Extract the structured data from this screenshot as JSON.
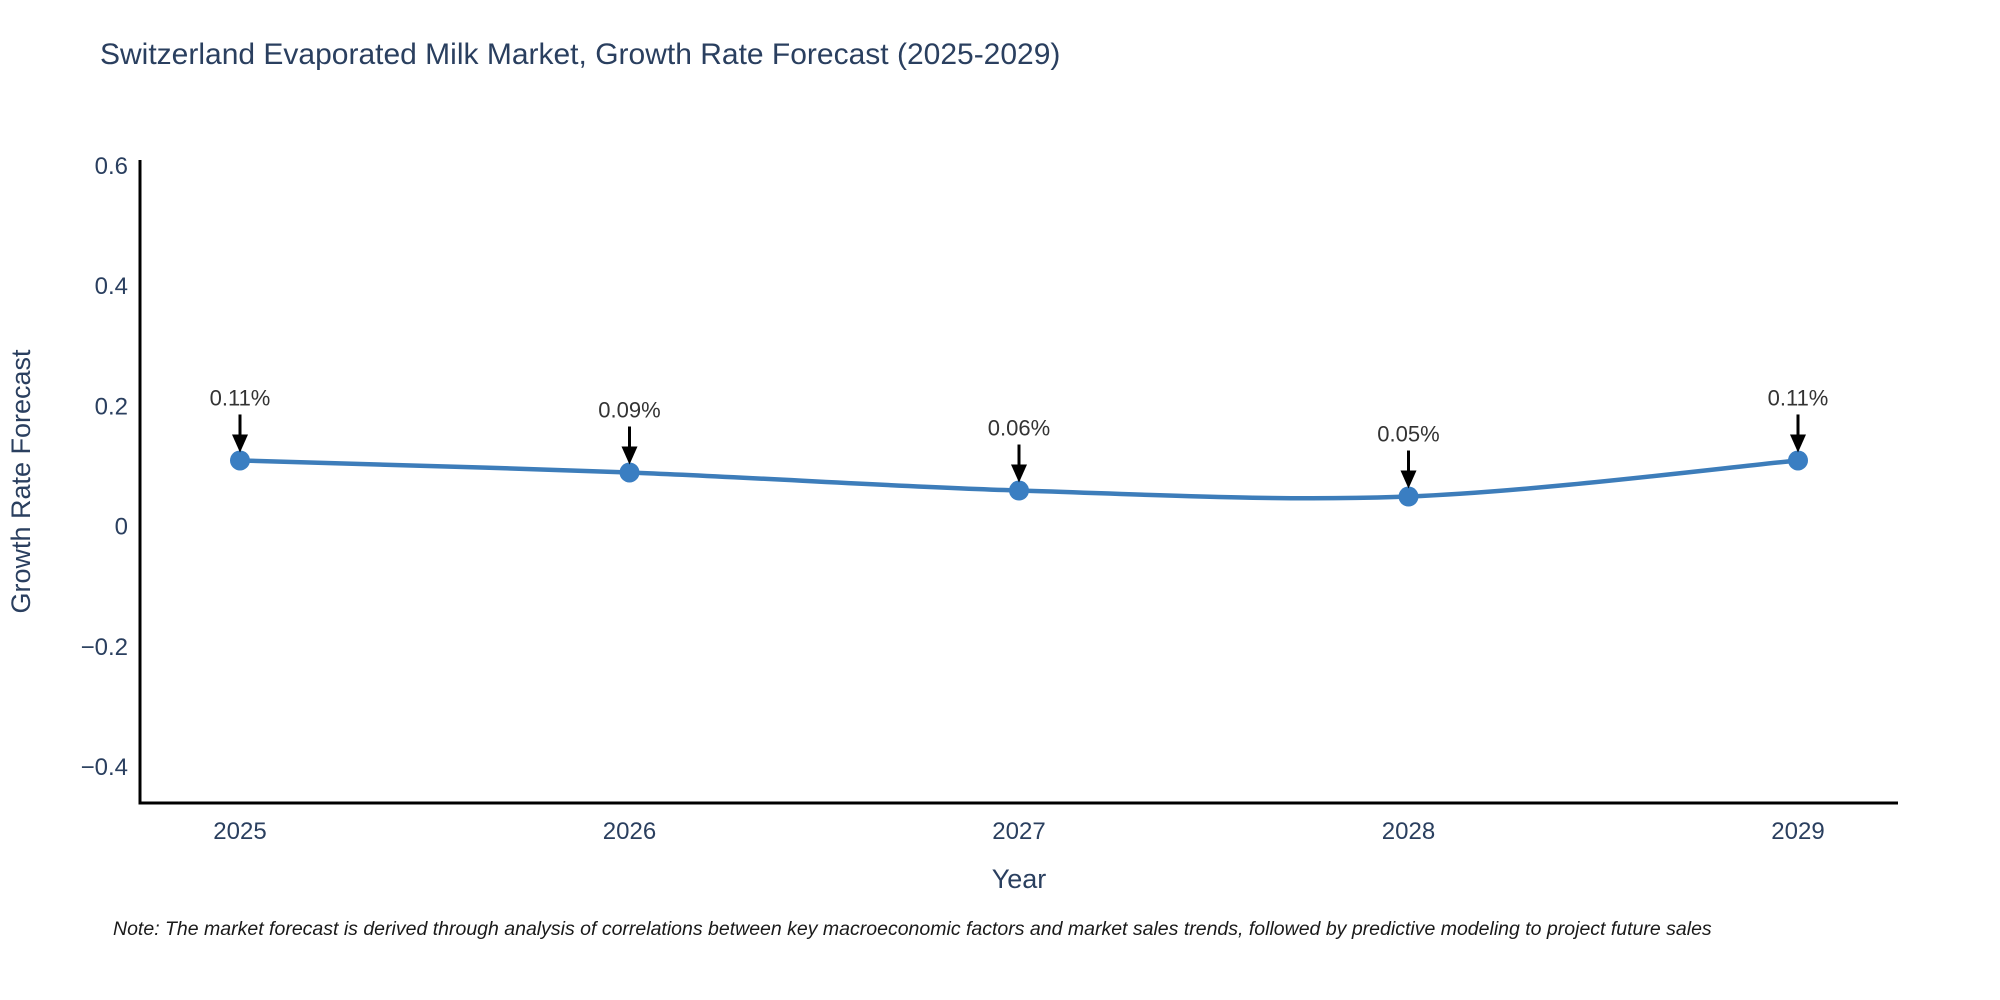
{
  "title": "Switzerland Evaporated Milk Market, Growth Rate Forecast (2025-2029)",
  "note": "Note: The market forecast is derived through analysis of correlations between key macroeconomic factors and market sales trends, followed by predictive modeling to project future sales",
  "chart_data": {
    "type": "line",
    "title": "Switzerland Evaporated Milk Market, Growth Rate Forecast (2025-2029)",
    "categories": [
      "2025",
      "2026",
      "2027",
      "2028",
      "2029"
    ],
    "x": [
      2025,
      2026,
      2027,
      2028,
      2029
    ],
    "values": [
      0.11,
      0.09,
      0.06,
      0.05,
      0.11
    ],
    "point_labels": [
      "0.11%",
      "0.09%",
      "0.06%",
      "0.05%",
      "0.11%"
    ],
    "xlabel": "Year",
    "ylabel": "Growth Rate Forecast",
    "yticks": [
      0.6,
      0.4,
      0.2,
      0,
      -0.2,
      -0.4
    ],
    "ytick_labels": [
      "0.6",
      "0.4",
      "0.2",
      "0",
      "−0.2",
      "−0.4"
    ],
    "ylim": [
      -0.46,
      0.61
    ],
    "grid": false,
    "legend_position": "none",
    "line_shape": "spline",
    "marker": "circle"
  },
  "colors": {
    "line": "#3d7dba",
    "marker": "#3a7ec2",
    "axis": "#000000",
    "tick_text": "#2a3f5f",
    "axis_title_text": "#2a3f5f",
    "annotation_text": "#333333",
    "annotation_arrow": "#000000",
    "background": "#ffffff"
  }
}
